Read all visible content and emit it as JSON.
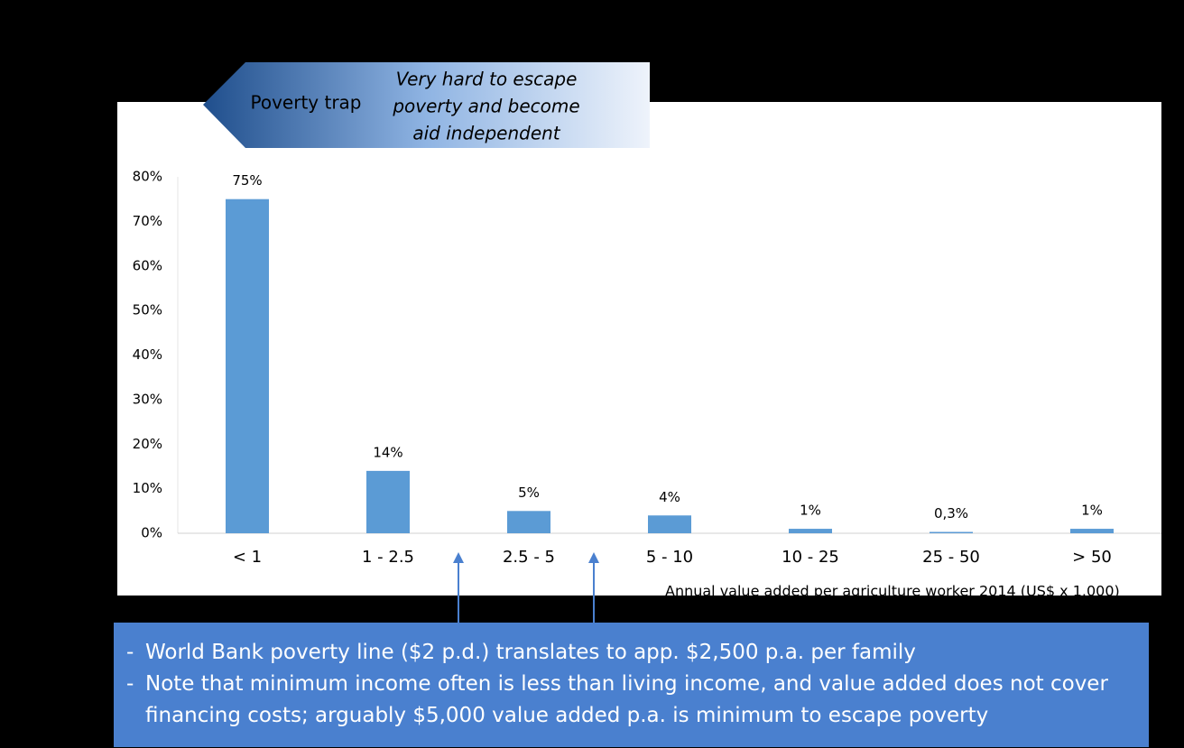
{
  "chart_data": {
    "type": "bar",
    "banner": {
      "left": "Poverty trap",
      "right": [
        "Very hard to escape",
        "poverty and become",
        "aid independent"
      ]
    },
    "categories": [
      "< 1",
      "1 - 2.5",
      "2.5 - 5",
      "5 - 10",
      "10 - 25",
      "25 - 50",
      "> 50"
    ],
    "values": [
      75,
      14,
      5,
      4,
      1,
      0.3,
      1
    ],
    "value_labels": [
      "75%",
      "14%",
      "5%",
      "4%",
      "1%",
      "0,3%",
      "1%"
    ],
    "color": "#5b9bd5",
    "ylim": [
      0,
      80
    ],
    "yticks": [
      {
        "value": 0,
        "label": "0%"
      },
      {
        "value": 10,
        "label": "10%"
      },
      {
        "value": 20,
        "label": "20%"
      },
      {
        "value": 30,
        "label": "30%"
      },
      {
        "value": 40,
        "label": "40%"
      },
      {
        "value": 50,
        "label": "50%"
      },
      {
        "value": 60,
        "label": "60%"
      },
      {
        "value": 70,
        "label": "70%"
      },
      {
        "value": 80,
        "label": "80%"
      }
    ],
    "grid": false,
    "x_label": "Annual value added per agriculture worker 2014 (US$ x 1.000)",
    "notes": [
      "World Bank poverty line ($2 p.d.) translates to app. $2,500 p.a. per family",
      "Note that minimum income often is less than living income, and value added does not cover financing costs; arguably $5,000 value added p.a. is minimum to escape poverty"
    ]
  }
}
